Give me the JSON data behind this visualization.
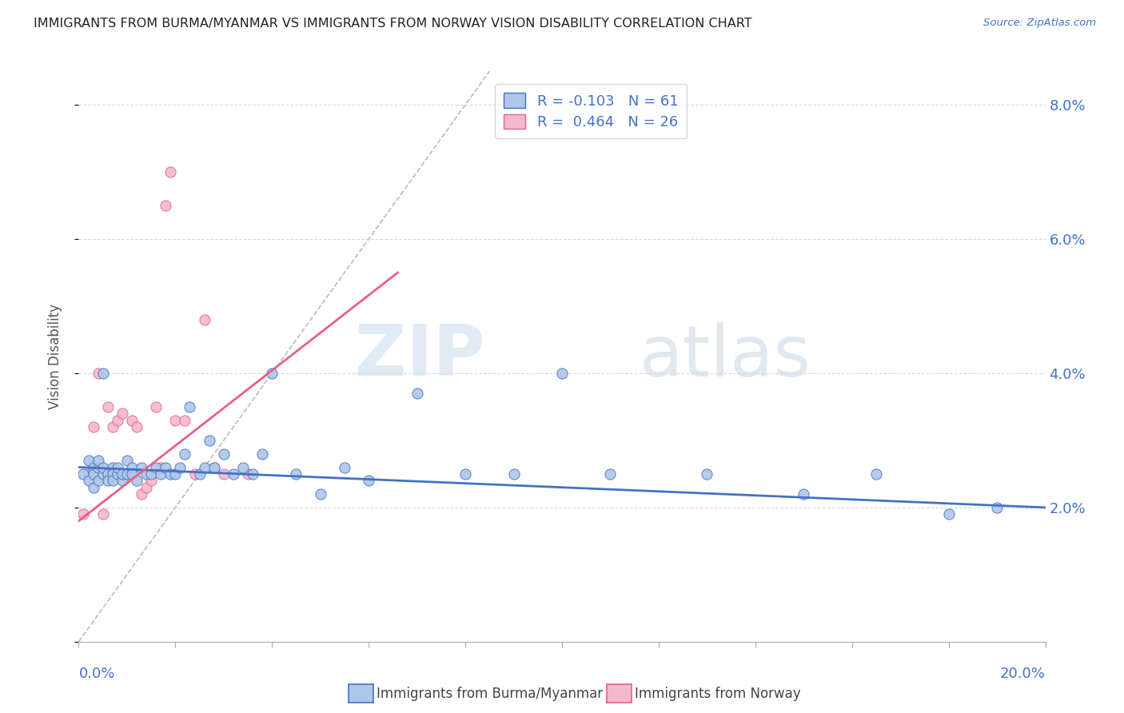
{
  "title": "IMMIGRANTS FROM BURMA/MYANMAR VS IMMIGRANTS FROM NORWAY VISION DISABILITY CORRELATION CHART",
  "source": "Source: ZipAtlas.com",
  "ylabel": "Vision Disability",
  "yticks": [
    0.0,
    0.02,
    0.04,
    0.06,
    0.08
  ],
  "ytick_labels": [
    "",
    "2.0%",
    "4.0%",
    "6.0%",
    "8.0%"
  ],
  "xlim": [
    0.0,
    0.2
  ],
  "ylim": [
    0.0,
    0.085
  ],
  "r_burma": -0.103,
  "n_burma": 61,
  "r_norway": 0.464,
  "n_norway": 26,
  "color_burma": "#aec6e8",
  "color_norway": "#f4b8cc",
  "line_color_burma": "#4472c4",
  "line_color_norway": "#e8608a",
  "diagonal_color": "#bbbbbb",
  "watermark_zip": "ZIP",
  "watermark_atlas": "atlas",
  "burma_scatter_x": [
    0.001,
    0.002,
    0.002,
    0.003,
    0.003,
    0.003,
    0.004,
    0.004,
    0.004,
    0.005,
    0.005,
    0.005,
    0.006,
    0.006,
    0.007,
    0.007,
    0.007,
    0.008,
    0.008,
    0.009,
    0.009,
    0.01,
    0.01,
    0.011,
    0.011,
    0.012,
    0.013,
    0.014,
    0.015,
    0.016,
    0.017,
    0.018,
    0.019,
    0.02,
    0.021,
    0.022,
    0.023,
    0.025,
    0.026,
    0.027,
    0.028,
    0.03,
    0.032,
    0.034,
    0.036,
    0.038,
    0.04,
    0.045,
    0.05,
    0.055,
    0.06,
    0.07,
    0.08,
    0.09,
    0.1,
    0.11,
    0.13,
    0.15,
    0.165,
    0.18,
    0.19
  ],
  "burma_scatter_y": [
    0.025,
    0.027,
    0.024,
    0.026,
    0.023,
    0.025,
    0.026,
    0.024,
    0.027,
    0.04,
    0.025,
    0.026,
    0.025,
    0.024,
    0.026,
    0.025,
    0.024,
    0.025,
    0.026,
    0.024,
    0.025,
    0.027,
    0.025,
    0.026,
    0.025,
    0.024,
    0.026,
    0.025,
    0.025,
    0.026,
    0.025,
    0.026,
    0.025,
    0.025,
    0.026,
    0.028,
    0.035,
    0.025,
    0.026,
    0.03,
    0.026,
    0.028,
    0.025,
    0.026,
    0.025,
    0.028,
    0.04,
    0.025,
    0.022,
    0.026,
    0.024,
    0.037,
    0.025,
    0.025,
    0.04,
    0.025,
    0.025,
    0.022,
    0.025,
    0.019,
    0.02
  ],
  "norway_scatter_x": [
    0.001,
    0.002,
    0.003,
    0.004,
    0.005,
    0.006,
    0.007,
    0.008,
    0.009,
    0.01,
    0.011,
    0.012,
    0.013,
    0.014,
    0.015,
    0.016,
    0.017,
    0.018,
    0.019,
    0.02,
    0.022,
    0.024,
    0.026,
    0.028,
    0.03,
    0.035
  ],
  "norway_scatter_y": [
    0.019,
    0.025,
    0.032,
    0.04,
    0.019,
    0.035,
    0.032,
    0.033,
    0.034,
    0.025,
    0.033,
    0.032,
    0.022,
    0.023,
    0.024,
    0.035,
    0.026,
    0.065,
    0.07,
    0.033,
    0.033,
    0.025,
    0.048,
    0.026,
    0.025,
    0.025
  ],
  "norway_trend_x": [
    0.0,
    0.066
  ],
  "norway_trend_y": [
    0.018,
    0.055
  ],
  "burma_trend_x": [
    0.0,
    0.2
  ],
  "burma_trend_y": [
    0.026,
    0.02
  ]
}
